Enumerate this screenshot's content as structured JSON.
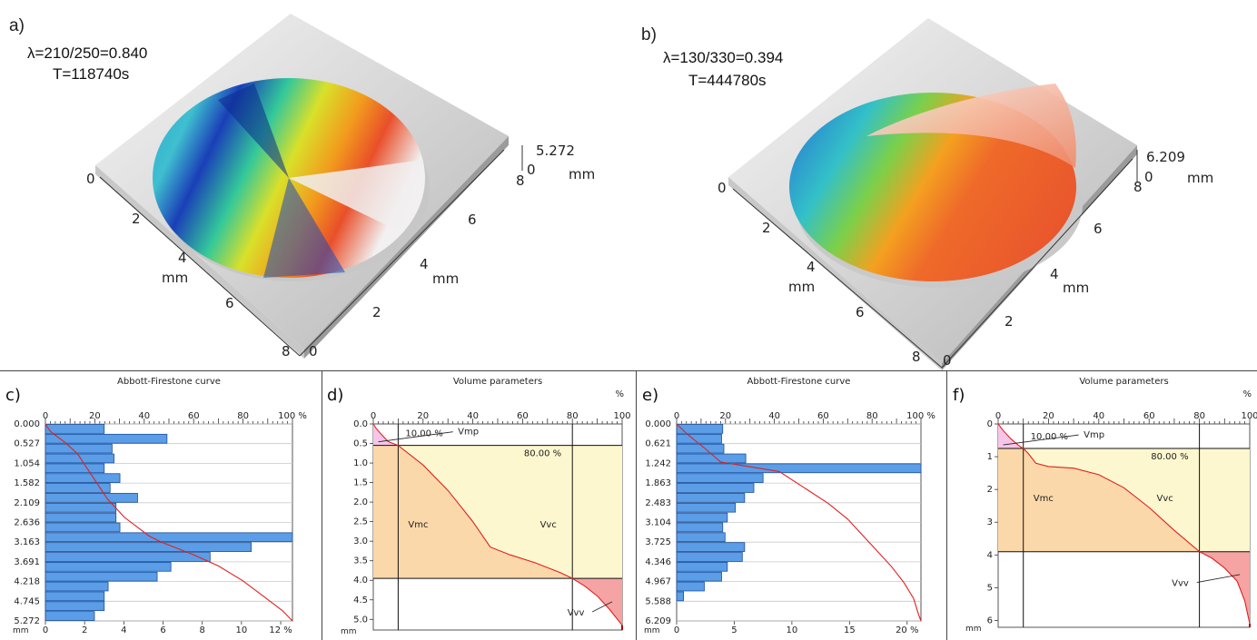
{
  "top": {
    "a": {
      "label": "a)",
      "line1": "λ=210/250=0.840",
      "line2": "T=118740s",
      "zmax": "5.272",
      "zmin": "0",
      "zunit": "mm",
      "y_axis_ticks": [
        "0",
        "2",
        "4",
        "6",
        "8"
      ],
      "y_axis_unit": "mm",
      "x_axis_ticks": [
        "0",
        "2",
        "4",
        "6",
        "8"
      ],
      "x_axis_unit": "mm"
    },
    "b": {
      "label": "b)",
      "line1": "λ=130/330=0.394",
      "line2": "T=444780s",
      "zmax": "6.209",
      "zmin": "0",
      "zunit": "mm",
      "y_axis_ticks": [
        "0",
        "2",
        "4",
        "6",
        "8"
      ],
      "y_axis_unit": "mm",
      "x_axis_ticks": [
        "0",
        "2",
        "4",
        "6",
        "8"
      ],
      "x_axis_unit": "mm"
    }
  },
  "chart_data": [
    {
      "id": "c",
      "panel_label": "c)",
      "type": "bar",
      "title": "Abbott-Firestone curve",
      "top_axis_ticks": [
        "0",
        "20",
        "40",
        "60",
        "80",
        "100 %"
      ],
      "bottom_axis_ticks": [
        "0",
        "2",
        "4",
        "6",
        "8",
        "10",
        "12 %"
      ],
      "y_tick_labels": [
        "0.000",
        "0.527",
        "1.054",
        "1.582",
        "2.109",
        "2.636",
        "3.163",
        "3.691",
        "4.218",
        "4.745",
        "5.272"
      ],
      "y_unit": "mm",
      "y_range": [
        0,
        5.272
      ],
      "bar_range_pct": [
        0,
        12.6
      ],
      "bar_bins": 20,
      "histogram_pct": [
        3.0,
        6.2,
        3.4,
        3.5,
        3.0,
        3.8,
        3.3,
        4.7,
        3.6,
        3.6,
        3.8,
        12.6,
        10.5,
        8.4,
        6.4,
        5.7,
        3.2,
        3.0,
        3.0,
        2.5
      ],
      "curve": {
        "depth": [
          0.0,
          0.2,
          0.5,
          0.8,
          1.1,
          1.5,
          2.0,
          2.5,
          3.0,
          3.163,
          3.5,
          3.8,
          4.2,
          4.6,
          5.0,
          5.272
        ],
        "cum_pct": [
          0,
          2,
          8,
          13,
          16,
          20,
          25,
          32,
          42,
          47,
          60,
          70,
          80,
          88,
          96,
          100
        ]
      }
    },
    {
      "id": "d",
      "panel_label": "d)",
      "type": "area",
      "title": "Volume parameters",
      "x_ticks": [
        "0",
        "20",
        "40",
        "60",
        "80",
        "100"
      ],
      "x_unit": "%",
      "y_ticks": [
        "0.0",
        "0.5",
        "1.0",
        "1.5",
        "2.0",
        "2.5",
        "3.0",
        "3.5",
        "4.0",
        "4.5",
        "5.0"
      ],
      "y_unit": "mm",
      "y_range": [
        0,
        5.272
      ],
      "mr1_label": "10.00 %",
      "mr2_label": "80.00 %",
      "mr1": 10,
      "mr2": 80,
      "depth_at_mr1": 0.55,
      "depth_at_mr2": 3.95,
      "labels": {
        "vmp": "Vmp",
        "vmc": "Vmc",
        "vvc": "Vvc",
        "vvv": "Vvv"
      },
      "curve": {
        "x": [
          0,
          1,
          3,
          6,
          10,
          15,
          20,
          30,
          40,
          47,
          55,
          65,
          75,
          80,
          85,
          90,
          95,
          100
        ],
        "y": [
          0.0,
          0.1,
          0.25,
          0.45,
          0.55,
          0.8,
          1.05,
          1.7,
          2.5,
          3.15,
          3.35,
          3.55,
          3.8,
          3.95,
          4.15,
          4.4,
          4.75,
          5.15
        ]
      }
    },
    {
      "id": "e",
      "panel_label": "e)",
      "type": "bar",
      "title": "Abbott-Firestone curve",
      "top_axis_ticks": [
        "0",
        "20",
        "40",
        "60",
        "80",
        "100 %"
      ],
      "bottom_axis_ticks": [
        "0",
        "5",
        "10",
        "15",
        "20 %"
      ],
      "y_tick_labels": [
        "0.000",
        "0.621",
        "1.242",
        "1.863",
        "2.483",
        "3.104",
        "3.725",
        "4.346",
        "4.967",
        "5.588",
        "6.209"
      ],
      "y_unit": "mm",
      "y_range": [
        0,
        6.209
      ],
      "bar_range_pct": [
        0,
        21.2
      ],
      "bar_bins": 20,
      "histogram_pct": [
        4.0,
        3.9,
        4.1,
        6.0,
        21.2,
        7.5,
        6.7,
        5.9,
        5.1,
        4.4,
        4.0,
        4.2,
        5.9,
        5.7,
        4.4,
        3.9,
        2.4,
        0.6,
        0,
        0
      ],
      "curve": {
        "depth": [
          0.0,
          0.3,
          0.8,
          1.2,
          1.35,
          1.5,
          2.0,
          2.5,
          3.0,
          3.5,
          4.0,
          4.5,
          5.0,
          5.5,
          6.0,
          6.209
        ],
        "cum_pct": [
          0,
          4,
          12,
          18,
          30,
          42,
          52,
          62,
          70,
          76,
          82,
          88,
          93,
          97,
          99,
          100
        ]
      }
    },
    {
      "id": "f",
      "panel_label": "f)",
      "type": "area",
      "title": "Volume parameters",
      "x_ticks": [
        "0",
        "20",
        "40",
        "60",
        "80",
        "100"
      ],
      "x_unit": "%",
      "y_ticks": [
        "0",
        "1",
        "2",
        "3",
        "4",
        "5",
        "6"
      ],
      "y_unit": "mm",
      "y_range": [
        0,
        6.209
      ],
      "mr1_label": "10.00 %",
      "mr2_label": "80.00 %",
      "mr1": 10,
      "mr2": 80,
      "depth_at_mr1": 0.75,
      "depth_at_mr2": 3.9,
      "labels": {
        "vmp": "Vmp",
        "vmc": "Vmc",
        "vvc": "Vvc",
        "vvv": "Vvv"
      },
      "curve": {
        "x": [
          0,
          2,
          5,
          8,
          10,
          12,
          15,
          20,
          30,
          40,
          50,
          60,
          70,
          80,
          85,
          90,
          95,
          98,
          100
        ],
        "y": [
          0.0,
          0.2,
          0.45,
          0.65,
          0.75,
          0.9,
          1.2,
          1.3,
          1.35,
          1.55,
          1.95,
          2.55,
          3.25,
          3.9,
          4.1,
          4.4,
          4.8,
          5.4,
          6.1
        ]
      }
    }
  ]
}
